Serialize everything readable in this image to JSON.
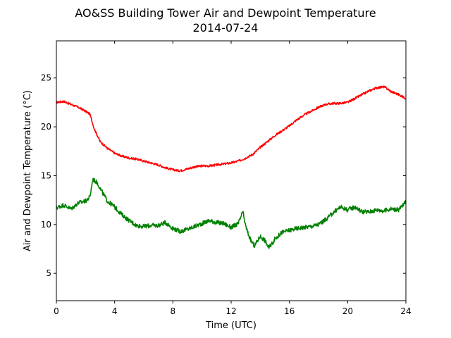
{
  "chart_data": {
    "type": "line",
    "title": "AO&SS Building Tower Air and Dewpoint Temperature",
    "subtitle": "2014-07-24",
    "xlabel": "Time (UTC)",
    "ylabel": "Air and Dewpoint Temperature (°C)",
    "xlim": [
      0,
      24
    ],
    "ylim": [
      2.2,
      28.8
    ],
    "xticks": [
      0,
      4,
      8,
      12,
      16,
      20,
      24
    ],
    "yticks": [
      5,
      10,
      15,
      20,
      25
    ],
    "grid": false,
    "legend": "none",
    "series": [
      {
        "color": "#ff0000",
        "x": [
          0,
          0.5,
          1,
          1.5,
          2,
          2.3,
          2.6,
          3,
          3.5,
          4,
          4.5,
          5,
          5.5,
          6,
          6.5,
          7,
          7.5,
          8,
          8.5,
          9,
          9.5,
          10,
          10.5,
          11,
          11.5,
          12,
          12.5,
          13,
          13.5,
          14,
          14.5,
          15,
          15.5,
          16,
          16.5,
          17,
          17.5,
          18,
          18.5,
          19,
          19.5,
          20,
          20.5,
          21,
          21.5,
          22,
          22.5,
          23,
          23.5,
          24
        ],
        "y": [
          22.5,
          22.6,
          22.3,
          22.0,
          21.6,
          21.3,
          19.8,
          18.5,
          17.8,
          17.3,
          17.0,
          16.8,
          16.7,
          16.5,
          16.3,
          16.1,
          15.8,
          15.6,
          15.5,
          15.7,
          15.9,
          16.0,
          16.0,
          16.1,
          16.2,
          16.3,
          16.5,
          16.8,
          17.2,
          17.9,
          18.5,
          19.1,
          19.6,
          20.1,
          20.7,
          21.2,
          21.6,
          22.0,
          22.3,
          22.4,
          22.4,
          22.5,
          22.9,
          23.3,
          23.7,
          24.0,
          24.1,
          23.6,
          23.3,
          22.9
        ]
      },
      {
        "color": "#008000",
        "x": [
          0,
          0.5,
          1,
          1.5,
          2,
          2.3,
          2.5,
          2.8,
          3,
          3.5,
          4,
          4.5,
          5,
          5.5,
          6,
          6.5,
          7,
          7.5,
          8,
          8.5,
          9,
          9.5,
          10,
          10.5,
          11,
          11.5,
          12,
          12.5,
          12.8,
          13,
          13.3,
          13.6,
          14,
          14.3,
          14.6,
          15,
          15.5,
          16,
          16.5,
          17,
          17.5,
          18,
          18.5,
          19,
          19.5,
          20,
          20.5,
          21,
          21.5,
          22,
          22.5,
          23,
          23.5,
          24
        ],
        "y": [
          11.7,
          12.0,
          11.6,
          12.2,
          12.4,
          12.8,
          14.6,
          14.3,
          13.7,
          12.4,
          11.8,
          11.0,
          10.4,
          9.9,
          9.8,
          9.9,
          9.9,
          10.2,
          9.6,
          9.3,
          9.5,
          9.8,
          10.1,
          10.4,
          10.2,
          10.1,
          9.7,
          10.1,
          11.3,
          9.8,
          8.5,
          7.8,
          8.8,
          8.4,
          7.6,
          8.5,
          9.2,
          9.4,
          9.6,
          9.7,
          9.8,
          10.0,
          10.5,
          11.2,
          11.8,
          11.5,
          11.8,
          11.3,
          11.3,
          11.5,
          11.4,
          11.6,
          11.5,
          12.3
        ]
      }
    ]
  }
}
